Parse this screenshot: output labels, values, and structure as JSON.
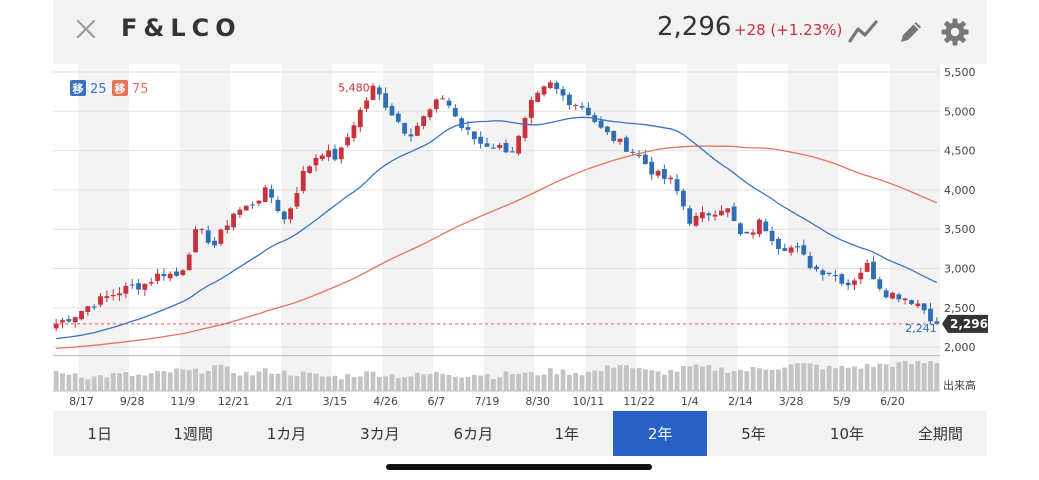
{
  "header": {
    "title": "F&LCO",
    "price": "2,296",
    "change": "+28 (+1.23%)"
  },
  "colors": {
    "up": "#c8323c",
    "down": "#2f6db5",
    "ma25": "#3a73c6",
    "ma75": "#e8735c",
    "volume": "#c4c4c4",
    "active_tab": "#2a60c6"
  },
  "icons": {
    "close": "close-icon",
    "chart": "line-chart-icon",
    "edit": "pencil-icon",
    "settings": "gear-icon"
  },
  "tabs": [
    {
      "label": "1日",
      "active": false
    },
    {
      "label": "1週間",
      "active": false
    },
    {
      "label": "1カ月",
      "active": false
    },
    {
      "label": "3カ月",
      "active": false
    },
    {
      "label": "6カ月",
      "active": false
    },
    {
      "label": "1年",
      "active": false
    },
    {
      "label": "2年",
      "active": true
    },
    {
      "label": "5年",
      "active": false
    },
    {
      "label": "10年",
      "active": false
    },
    {
      "label": "全期間",
      "active": false
    }
  ],
  "chart_data": {
    "type": "candlestick",
    "legend": [
      {
        "badge": "移",
        "value": "25",
        "color": "#3a73c6"
      },
      {
        "badge": "移",
        "value": "75",
        "color": "#e8735c"
      }
    ],
    "ylim": [
      1900,
      5500
    ],
    "y_ticks": [
      5500,
      5000,
      4500,
      4000,
      3500,
      3000,
      2500,
      2000
    ],
    "y_tick_labels": [
      "5,500",
      "5,000",
      "4,500",
      "4,000",
      "3,500",
      "3,000",
      "2,500",
      "2,000"
    ],
    "x_tick_labels": [
      "8/17",
      "9/28",
      "11/9",
      "12/21",
      "2/1",
      "3/15",
      "4/26",
      "6/7",
      "7/19",
      "8/30",
      "10/11",
      "11/22",
      "1/4",
      "2/14",
      "3/28",
      "5/9",
      "6/20"
    ],
    "x_tick_index": [
      4,
      12,
      20,
      28,
      36,
      44,
      52,
      60,
      68,
      76,
      84,
      92,
      100,
      108,
      116,
      124,
      132
    ],
    "annotations": {
      "high": {
        "label": "5,480",
        "value": 5480,
        "index": 47
      },
      "low": {
        "label": "2,241",
        "value": 2241,
        "index": 138
      },
      "last": {
        "label": "2,296",
        "value": 2296
      }
    },
    "volume_label": "出来高",
    "ohlc_anchor_closes": [
      2300,
      2400,
      2550,
      2650,
      2750,
      2800,
      2950,
      2900,
      3500,
      3300,
      3700,
      3800,
      4000,
      3600,
      4200,
      4500,
      4400,
      4900,
      5300,
      5000,
      4700,
      4950,
      5200,
      4800,
      4600,
      4550,
      4500,
      5100,
      5350,
      5150,
      5050,
      4750,
      4600,
      4450,
      4200,
      4100,
      3600,
      3700,
      3800,
      3350,
      3600,
      3300,
      3250,
      3000,
      2950,
      2800,
      3050,
      2700,
      2650,
      2550,
      2296
    ],
    "volume_anchor": [
      0.52,
      0.55,
      0.4,
      0.48,
      0.5,
      0.45,
      0.55,
      0.62,
      0.58,
      0.75,
      0.6,
      0.5,
      0.62,
      0.55,
      0.52,
      0.45,
      0.42,
      0.5,
      0.55,
      0.48,
      0.45,
      0.5,
      0.55,
      0.48,
      0.52,
      0.45,
      0.55,
      0.5,
      0.6,
      0.58,
      0.55,
      0.62,
      0.85,
      0.65,
      0.55,
      0.6,
      0.72,
      0.7,
      0.65,
      0.62,
      0.68,
      0.72,
      0.8,
      0.78,
      0.68,
      0.72,
      0.75,
      0.8,
      0.82,
      0.85,
      0.9
    ]
  }
}
